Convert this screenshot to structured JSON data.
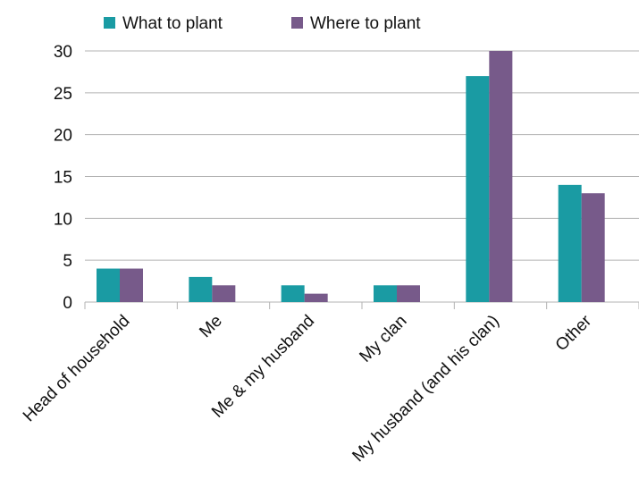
{
  "chart_data": {
    "type": "bar",
    "title": "",
    "xlabel": "",
    "ylabel": "",
    "categories": [
      "Head of household",
      "Me",
      "Me & my husband",
      "My clan",
      "My husband (and his clan)",
      "Other"
    ],
    "series": [
      {
        "name": "What to plant",
        "color": "#1a9ba3",
        "values": [
          4,
          3,
          2,
          2,
          27,
          14
        ]
      },
      {
        "name": "Where to plant",
        "color": "#775a8a",
        "values": [
          4,
          2,
          1,
          2,
          30,
          13
        ]
      }
    ],
    "ylim": [
      0,
      30
    ],
    "yticks": [
      0,
      5,
      10,
      15,
      20,
      25,
      30
    ],
    "grid": true,
    "legend_position": "top-left"
  }
}
